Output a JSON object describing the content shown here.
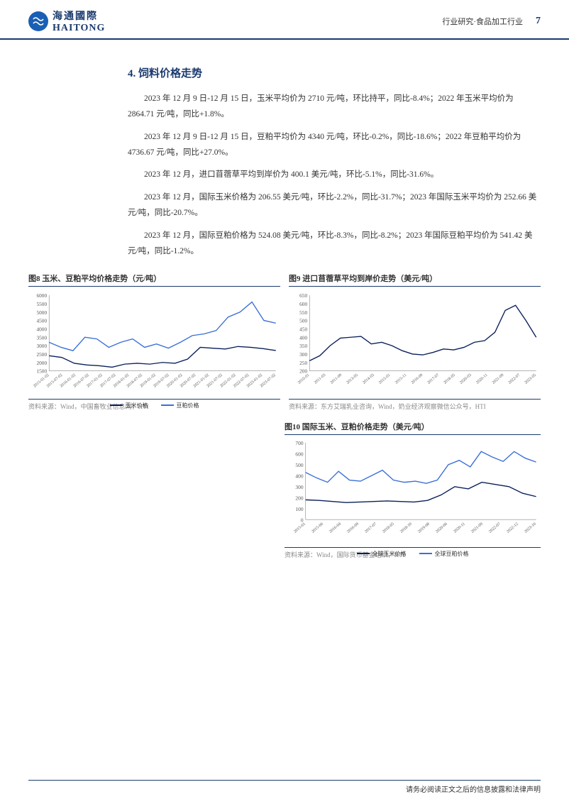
{
  "header": {
    "logo_cn": "海通國際",
    "logo_en": "HAITONG",
    "meta": "行业研究·食品加工行业",
    "page": "7"
  },
  "section": {
    "title": "4.  饲料价格走势",
    "paragraphs": [
      "2023 年 12 月 9 日-12 月 15 日，玉米平均价为 2710 元/吨，环比持平，同比-8.4%；2022 年玉米平均价为 2864.71 元/吨，同比+1.8%。",
      "2023 年 12 月 9 日-12 月 15 日，豆粕平均价为 4340 元/吨，环比-0.2%，同比-18.6%；2022 年豆粕平均价为 4736.67 元/吨，同比+27.0%。",
      "2023 年 12 月，进口苜蓿草平均到岸价为 400.1 美元/吨，环比-5.1%，同比-31.6%。",
      "2023 年 12 月，国际玉米价格为 206.55 美元/吨，环比-2.2%，同比-31.7%；2023 年国际玉米平均价为 252.66 美元/吨，同比-20.7%。",
      "2023 年 12 月，国际豆粕价格为 524.08 美元/吨，环比-8.3%，同比-8.2%；2023 年国际豆粕平均价为 541.42 美元/吨，同比-1.2%。"
    ]
  },
  "chart8": {
    "title": "图8  玉米、豆粕平均价格走势（元/吨）",
    "source": "资料来源：Wind，中国畜牧业信息网，HTI",
    "ylim": [
      1500,
      6000
    ],
    "ytick_step": 500,
    "xlabels": [
      "2015-01-02",
      "2015-07-02",
      "2016-01-02",
      "2016-07-02",
      "2017-01-02",
      "2017-07-02",
      "2018-01-02",
      "2018-07-02",
      "2019-01-02",
      "2019-07-02",
      "2020-01-02",
      "2020-07-02",
      "2021-01-02",
      "2021-07-02",
      "2022-01-02",
      "2022-07-02",
      "2023-01-02",
      "2023-07-02"
    ],
    "series": [
      {
        "name": "玉米价格",
        "color": "#0a1f5a",
        "data": [
          2400,
          2300,
          1950,
          1850,
          1800,
          1720,
          1900,
          1950,
          1900,
          2000,
          1950,
          2200,
          2900,
          2850,
          2800,
          2950,
          2900,
          2820,
          2710
        ]
      },
      {
        "name": "豆粕价格",
        "color": "#3a6fd8",
        "data": [
          3200,
          2900,
          2700,
          3500,
          3400,
          2900,
          3200,
          3400,
          2900,
          3100,
          2850,
          3200,
          3600,
          3700,
          3900,
          4700,
          5000,
          5600,
          4500,
          4340
        ]
      }
    ],
    "legend": [
      "玉米价格",
      "豆粕价格"
    ],
    "background_color": "#ffffff",
    "grid_color": "#e0e0e0",
    "label_fontsize": 8
  },
  "chart9": {
    "title": "图9  进口苜蓿草平均到岸价走势（美元/吨）",
    "source": "资料来源：东方艾瑞乳业咨询，Wind，奶业经济观察微信公众号，HTI",
    "ylim": [
      200,
      650
    ],
    "ytick_step": 50,
    "xlabels": [
      "2010-01",
      "2011-03",
      "2011-09",
      "2013-05",
      "2014-03",
      "2015-01",
      "2015-11",
      "2016-09",
      "2017-07",
      "2018-05",
      "2020-03",
      "2020-11",
      "2021-09",
      "2022-07",
      "2023-05"
    ],
    "series": [
      {
        "name": "苜蓿草",
        "color": "#0a1f5a",
        "data": [
          260,
          290,
          350,
          395,
          400,
          405,
          360,
          370,
          350,
          320,
          300,
          295,
          310,
          330,
          325,
          340,
          370,
          380,
          430,
          560,
          590,
          500,
          400
        ]
      }
    ],
    "background_color": "#ffffff",
    "grid_color": "#e0e0e0",
    "label_fontsize": 8
  },
  "chart10": {
    "title": "图10 国际玉米、豆粕价格走势（美元/吨）",
    "source": "资料来源：Wind，国际货币基金组织，HTI",
    "ylim": [
      0,
      700
    ],
    "ytick_step": 100,
    "xlabels": [
      "2015-01",
      "2015-06",
      "2016-04",
      "2016-09",
      "2017-07",
      "2018-05",
      "2018-10",
      "2019-08",
      "2020-06",
      "2020-11",
      "2021-09",
      "2022-07",
      "2022-12",
      "2023-10"
    ],
    "series": [
      {
        "name": "全球玉米价格",
        "color": "#0a1f5a",
        "data": [
          180,
          175,
          165,
          155,
          160,
          165,
          170,
          165,
          160,
          175,
          225,
          300,
          280,
          340,
          320,
          300,
          240,
          210
        ]
      },
      {
        "name": "全球豆粕价格",
        "color": "#3a6fd8",
        "data": [
          430,
          380,
          340,
          440,
          360,
          350,
          400,
          450,
          360,
          340,
          350,
          330,
          360,
          500,
          540,
          480,
          620,
          570,
          530,
          620,
          560,
          524
        ]
      }
    ],
    "legend": [
      "全球玉米价格",
      "全球豆粕价格"
    ],
    "background_color": "#ffffff",
    "grid_color": "#e0e0e0",
    "label_fontsize": 8
  },
  "footer": "请务必阅读正文之后的信息披露和法律声明"
}
